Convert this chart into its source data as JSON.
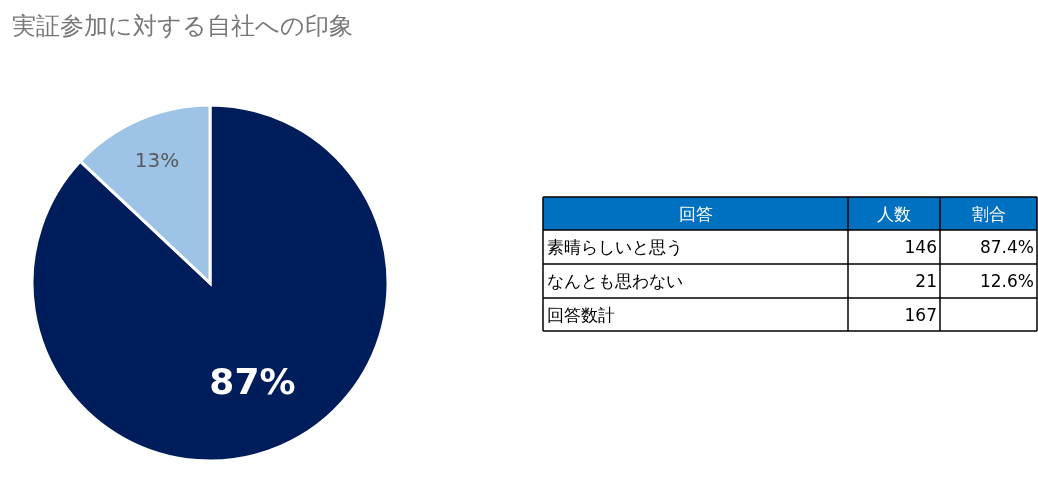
{
  "chart_data": [
    {
      "type": "pie",
      "title": "実証参加に対する自社への印象",
      "categories": [
        null,
        null
      ],
      "values": [
        87,
        13
      ],
      "value_labels": [
        "87%",
        "13%"
      ],
      "colors": [
        "#001d5b",
        "#9dc3e6"
      ]
    },
    {
      "type": "other",
      "ylabel": "回答",
      "categories": [
        "人数",
        "割合"
      ],
      "y_categories": [
        "素晴らしいと思う",
        "なんとも思わない",
        "回答数計"
      ],
      "cell_labels": [
        [
          "146",
          "87.4%"
        ],
        [
          "21",
          "12.6%"
        ],
        [
          "167",
          null
        ]
      ]
    }
  ]
}
